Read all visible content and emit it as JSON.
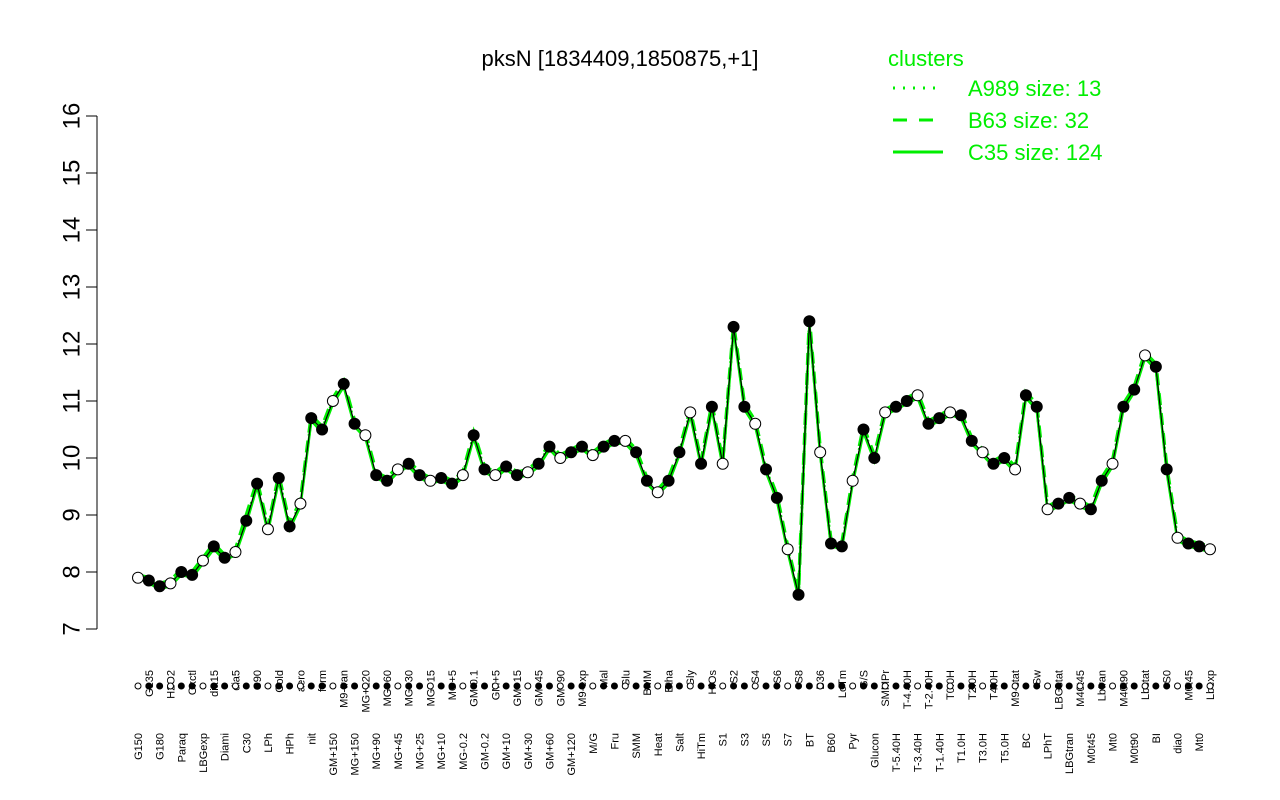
{
  "chart_data": {
    "type": "line",
    "title": "pksN [1834409,1850875,+1]",
    "ylim": [
      7,
      16
    ],
    "yticks": [
      7,
      8,
      9,
      10,
      11,
      12,
      13,
      14,
      15,
      16
    ],
    "grid": false,
    "legend": {
      "title": "clusters",
      "placement": "top-right",
      "entries": [
        {
          "label": "A989 size: 13",
          "style": "dotted"
        },
        {
          "label": "B63 size: 32",
          "style": "dashed"
        },
        {
          "label": "C35 size: 124",
          "style": "solid"
        }
      ]
    },
    "x_labels_top": [
      "G150",
      "G135",
      "G180",
      "H2O2",
      "Paraq",
      "Oxctl",
      "LBGexp",
      "dia15",
      "Diami",
      "dia5",
      "C30",
      "C90",
      "LPh",
      "Cold",
      "HPh",
      "aero",
      "nit",
      "ferm",
      "GM+150",
      "M9-tran",
      "MG+150",
      "MG+120",
      "MG+90",
      "MG+60",
      "MG+45",
      "MG+30",
      "MG+25",
      "MG+15",
      "MG+10",
      "MG+5",
      "MG-0.2",
      "GM-0.1",
      "GM-0.2",
      "GM+5",
      "GM+10",
      "GM+15",
      "GM+30",
      "GM+45",
      "GM+60",
      "GM+90",
      "GM+120",
      "M9-exp",
      "M/G",
      "Mal",
      "Fru",
      "Glu",
      "SMM",
      "BMM",
      "Heat",
      "Etha",
      "Salt",
      "Gly",
      "HiTm",
      "HiOs",
      "S1",
      "S2",
      "S3",
      "S4",
      "S5",
      "S6",
      "S7",
      "S8",
      "BT",
      "B36",
      "B60",
      "LoTm",
      "Pyr",
      "G/S",
      "Glucon",
      "SMMPr",
      "T-5.40H",
      "T-4.40H",
      "T-3.40H",
      "T-2.40H",
      "T-1.40H",
      "T0.0H",
      "T1.0H",
      "T2.0H",
      "T3.0H",
      "T4.0H",
      "T5.0H",
      "M9-stat",
      "BC",
      "Sw",
      "LPhT",
      "LBGstat",
      "LBGtran",
      "M40t45",
      "M0t45",
      "Lbtran",
      "Mt0",
      "M40t90",
      "M0t90",
      "Lbstat",
      "BI",
      "S0",
      "dia0",
      "M0t45",
      "Mt0",
      "Lbexp"
    ],
    "series": [
      {
        "values": [
          7.9,
          7.85,
          7.75,
          7.8,
          8.0,
          7.95,
          8.2,
          8.45,
          8.25,
          8.35,
          8.9,
          9.55,
          8.75,
          9.65,
          8.8,
          9.2,
          10.7,
          10.5,
          11.0,
          11.3,
          10.6,
          10.4,
          9.7,
          9.6,
          9.8,
          9.9,
          9.7,
          9.6,
          9.65,
          9.55,
          9.7,
          10.4,
          9.8,
          9.7,
          9.85,
          9.7,
          9.75,
          9.9,
          10.2,
          10.0,
          10.1,
          10.2,
          10.05,
          10.2,
          10.3,
          10.3,
          10.1,
          9.6,
          9.4,
          9.6,
          10.1,
          10.8,
          9.9,
          10.9,
          9.9,
          12.3,
          10.9,
          10.6,
          9.8,
          9.3,
          8.4,
          7.6,
          12.4,
          10.1,
          8.5,
          8.45,
          9.6,
          10.5,
          10.0,
          10.8,
          10.9,
          11.0,
          11.1,
          10.6,
          10.7,
          10.8,
          10.75,
          10.3,
          10.1,
          9.9,
          10.0,
          9.8,
          11.1,
          10.9,
          9.1,
          9.2,
          9.3,
          9.2,
          9.1,
          9.6,
          9.9,
          10.9,
          11.2,
          11.8,
          11.6,
          9.8,
          8.6,
          8.5,
          8.45,
          8.4
        ]
      },
      {
        "values": [
          7.95,
          7.9,
          7.8,
          7.85,
          8.05,
          8.0,
          8.25,
          8.5,
          8.3,
          8.4,
          9.0,
          9.6,
          8.8,
          9.7,
          8.85,
          9.25,
          10.75,
          10.55,
          11.05,
          11.35,
          10.65,
          10.45,
          9.75,
          9.65,
          9.85,
          9.95,
          9.75,
          9.65,
          9.7,
          9.6,
          9.75,
          10.45,
          9.85,
          9.75,
          9.9,
          9.75,
          9.8,
          9.95,
          10.25,
          10.05,
          10.15,
          10.25,
          10.1,
          10.25,
          10.35,
          10.35,
          10.15,
          9.65,
          9.45,
          9.65,
          10.15,
          10.85,
          9.95,
          10.95,
          9.95,
          12.35,
          10.95,
          10.65,
          9.85,
          9.35,
          8.45,
          7.65,
          12.45,
          10.15,
          8.55,
          8.5,
          9.65,
          10.55,
          10.05,
          10.85,
          10.95,
          11.05,
          11.15,
          10.65,
          10.75,
          10.85,
          10.8,
          10.35,
          10.15,
          9.95,
          10.05,
          9.85,
          11.15,
          10.95,
          9.15,
          9.25,
          9.35,
          9.25,
          9.15,
          9.65,
          9.95,
          10.95,
          11.25,
          11.85,
          11.65,
          9.85,
          8.65,
          8.55,
          8.5,
          8.45
        ]
      },
      {
        "values": [
          7.9,
          7.8,
          7.7,
          7.75,
          7.95,
          7.9,
          8.15,
          8.4,
          8.2,
          8.3,
          8.85,
          9.5,
          8.7,
          9.6,
          8.75,
          9.15,
          10.65,
          10.45,
          10.95,
          11.25,
          10.55,
          10.35,
          9.65,
          9.55,
          9.75,
          9.85,
          9.65,
          9.55,
          9.6,
          9.5,
          9.65,
          10.35,
          9.75,
          9.65,
          9.8,
          9.65,
          9.7,
          9.85,
          10.15,
          9.95,
          10.05,
          10.15,
          10.0,
          10.15,
          10.25,
          10.25,
          10.05,
          9.55,
          9.35,
          9.55,
          10.05,
          10.75,
          9.85,
          10.85,
          9.85,
          12.25,
          10.85,
          10.55,
          9.75,
          9.25,
          8.35,
          7.55,
          12.35,
          10.05,
          8.45,
          8.4,
          9.55,
          10.45,
          9.95,
          10.75,
          10.85,
          10.95,
          11.05,
          10.55,
          10.65,
          10.75,
          10.7,
          10.25,
          10.05,
          9.85,
          9.95,
          9.75,
          11.05,
          10.85,
          9.05,
          9.15,
          9.25,
          9.15,
          9.05,
          9.55,
          9.85,
          10.85,
          11.15,
          11.75,
          11.55,
          9.75,
          8.55,
          8.45,
          8.4,
          8.35
        ]
      }
    ]
  }
}
